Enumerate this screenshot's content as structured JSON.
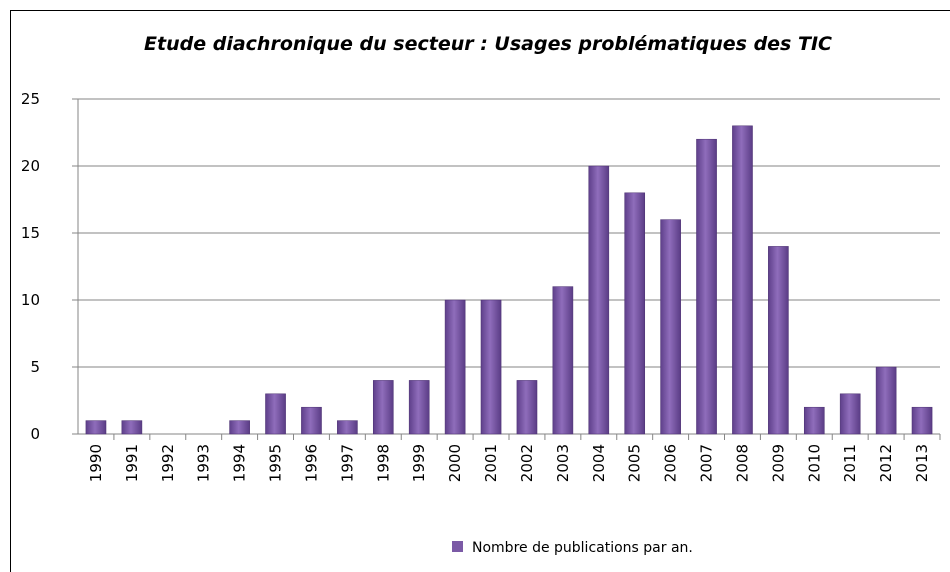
{
  "chart_data": {
    "type": "bar",
    "title": "Etude diachronique  du secteur : Usages problématiques  des TIC",
    "categories": [
      "1990",
      "1991",
      "1992",
      "1993",
      "1994",
      "1995",
      "1996",
      "1997",
      "1998",
      "1999",
      "2000",
      "2001",
      "2002",
      "2003",
      "2004",
      "2005",
      "2006",
      "2007",
      "2008",
      "2009",
      "2010",
      "2011",
      "2012",
      "2013"
    ],
    "series": [
      {
        "name": "Nombre de publications par an.",
        "color": "#7b5aa6",
        "values": [
          1,
          1,
          0,
          0,
          1,
          3,
          2,
          1,
          4,
          4,
          10,
          10,
          4,
          11,
          20,
          18,
          16,
          22,
          23,
          14,
          2,
          3,
          5,
          2
        ]
      }
    ],
    "ylim": [
      0,
      25
    ],
    "yticks": [
      0,
      5,
      10,
      15,
      20,
      25
    ],
    "grid": true,
    "legend": "bottom"
  }
}
